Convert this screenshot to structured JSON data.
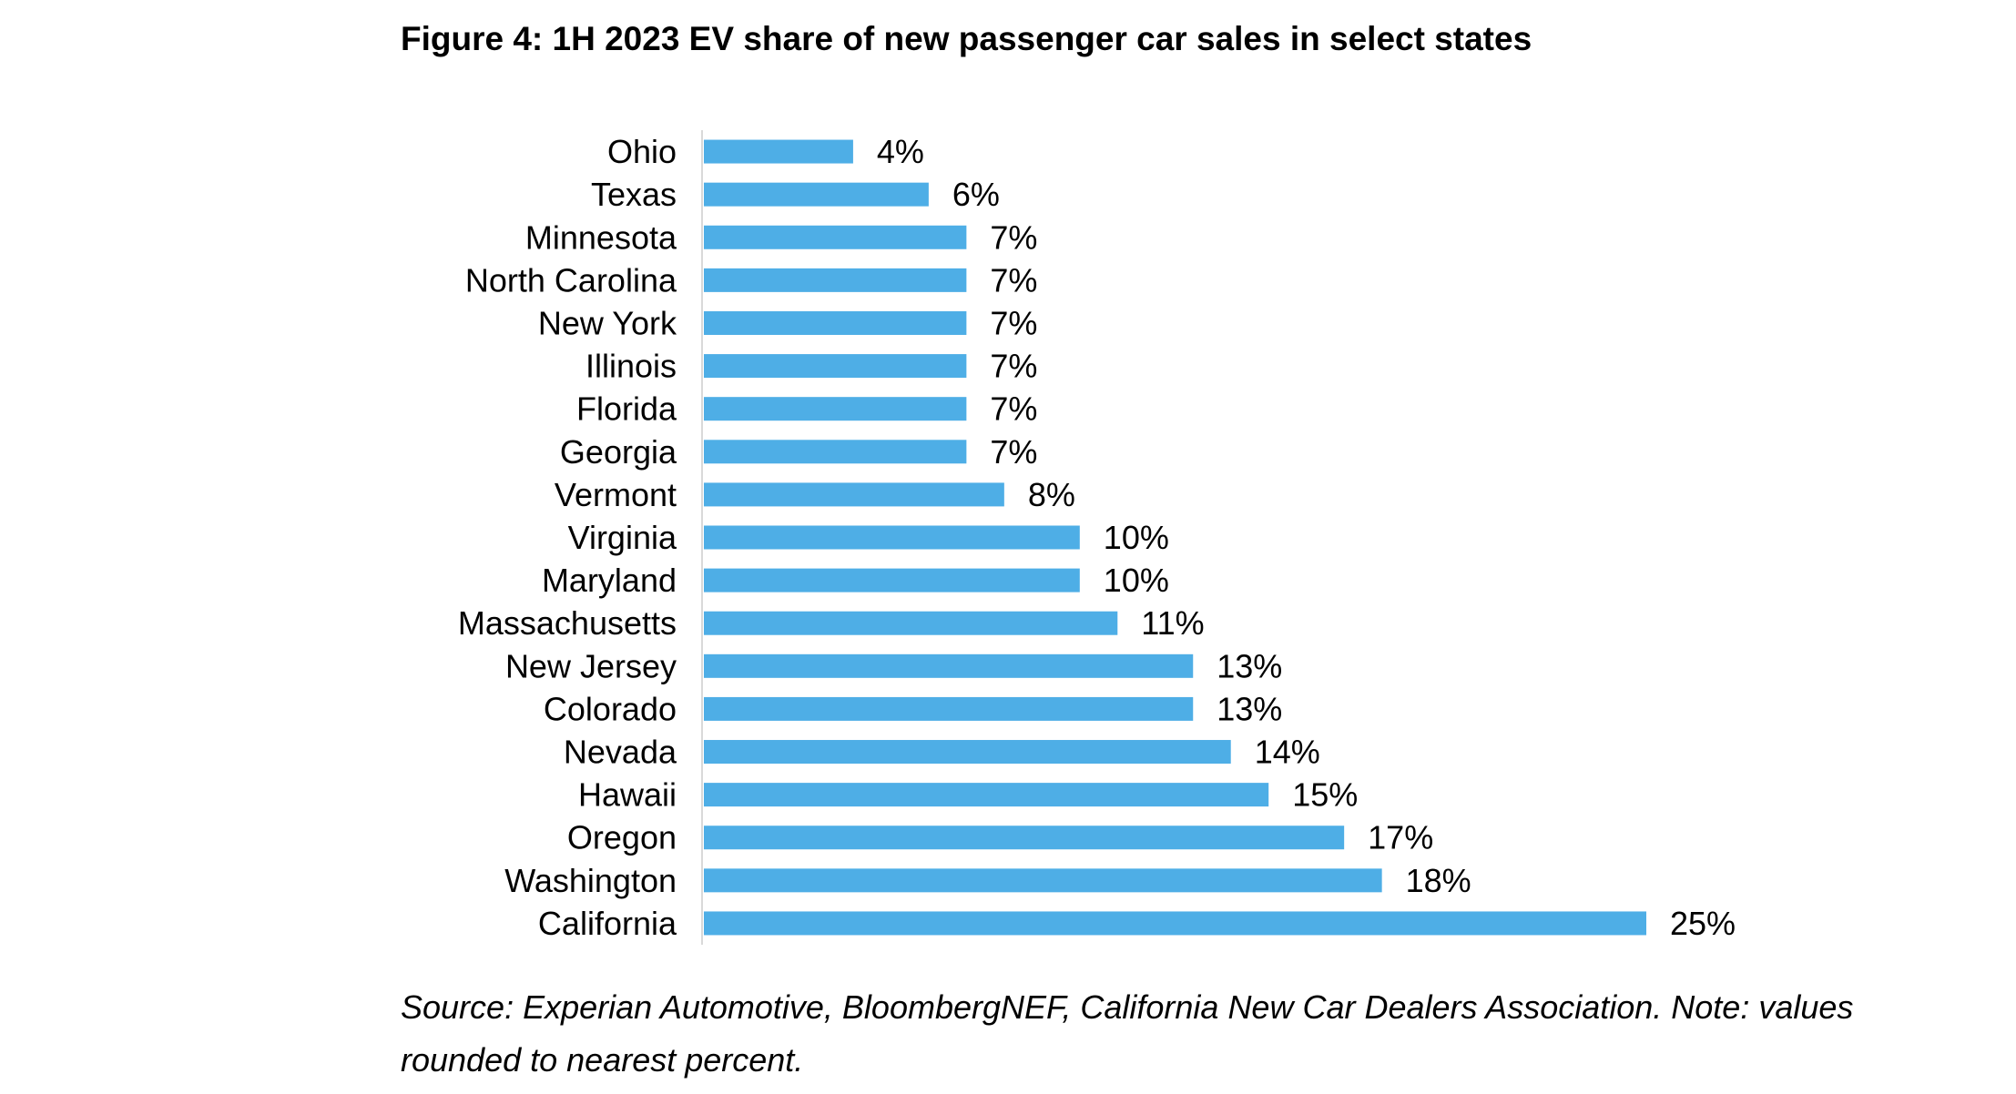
{
  "figure": {
    "title": "Figure 4: 1H 2023 EV share of new passenger car sales in select states",
    "source_note": "Source: Experian Automotive, BloombergNEF, California New Car Dealers Association. Note: values rounded to nearest percent."
  },
  "chart_data": {
    "type": "bar",
    "orientation": "horizontal",
    "title": "Figure 4: 1H 2023 EV share of new passenger car sales in select states",
    "xlabel": "",
    "ylabel": "",
    "unit": "%",
    "xlim": [
      0,
      25
    ],
    "grid": false,
    "legend": "none",
    "bar_color": "#4eaee6",
    "axis_color": "#d9d9d9",
    "categories": [
      "Ohio",
      "Texas",
      "Minnesota",
      "North Carolina",
      "New York",
      "Illinois",
      "Florida",
      "Georgia",
      "Vermont",
      "Virginia",
      "Maryland",
      "Massachusetts",
      "New Jersey",
      "Colorado",
      "Nevada",
      "Hawaii",
      "Oregon",
      "Washington",
      "California"
    ],
    "values": [
      4,
      6,
      7,
      7,
      7,
      7,
      7,
      7,
      8,
      10,
      10,
      11,
      13,
      13,
      14,
      15,
      17,
      18,
      25
    ],
    "value_labels": [
      "4%",
      "6%",
      "7%",
      "7%",
      "7%",
      "7%",
      "7%",
      "7%",
      "8%",
      "10%",
      "10%",
      "11%",
      "13%",
      "13%",
      "14%",
      "15%",
      "17%",
      "18%",
      "25%"
    ]
  }
}
